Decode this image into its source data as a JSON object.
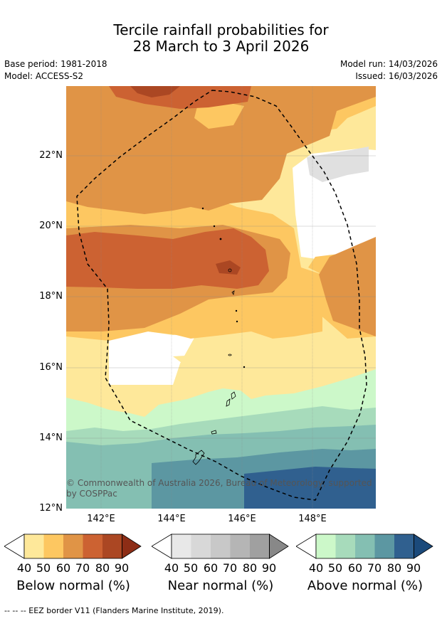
{
  "title": {
    "line1": "Tercile rainfall probabilities for",
    "line2": "28 March to 3 April 2026"
  },
  "meta": {
    "base_period": "Base period: 1981-2018",
    "model": "Model: ACCESS-S2",
    "model_run": "Model run: 14/03/2026",
    "issued": "Issued: 16/03/2026"
  },
  "map": {
    "lat_labels": [
      "22°N",
      "20°N",
      "18°N",
      "16°N",
      "14°N",
      "12°N"
    ],
    "lon_labels": [
      "142°E",
      "144°E",
      "146°E",
      "148°E"
    ],
    "credit_line1": "© Commonwealth of Australia 2026, Bureau of Meteorology, supported",
    "credit_line2": "by COSPPac"
  },
  "legend": {
    "ticks": [
      "40",
      "50",
      "60",
      "70",
      "80",
      "90"
    ],
    "below": {
      "label": "Below normal (%)",
      "colors": [
        "#fee89a",
        "#fdc761",
        "#e09446",
        "#cc6232",
        "#ab4723",
        "#8d2d16"
      ]
    },
    "near": {
      "label": "Near normal (%)",
      "colors": [
        "#e8e8e8",
        "#d8d8d8",
        "#c8c8c8",
        "#b5b5b5",
        "#a0a0a0",
        "#888888"
      ]
    },
    "above": {
      "label": "Above normal (%)",
      "colors": [
        "#ccf8c9",
        "#a7dbbb",
        "#84bfb2",
        "#5c97a2",
        "#30608f",
        "#1b4a7b"
      ]
    }
  },
  "footer": "--  --  -- EEZ border V11 (Flanders Marine Institute, 2019)."
}
